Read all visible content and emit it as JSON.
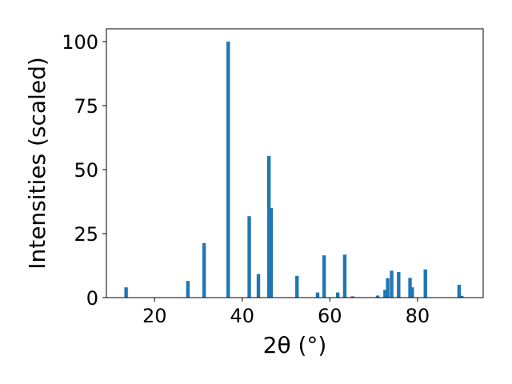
{
  "chart_data": {
    "type": "bar",
    "xlabel": "2θ (°)",
    "ylabel": "Intensities (scaled)",
    "xlim": [
      9,
      95
    ],
    "ylim": [
      0,
      105
    ],
    "xticks": [
      20,
      40,
      60,
      80
    ],
    "yticks": [
      0,
      25,
      50,
      75,
      100
    ],
    "bar_color": "#1f77b4",
    "grid": false,
    "bar_width": 0.8,
    "peaks": [
      {
        "x": 13.5,
        "y": 4.0
      },
      {
        "x": 27.6,
        "y": 6.5
      },
      {
        "x": 31.3,
        "y": 21.3
      },
      {
        "x": 36.8,
        "y": 100.0
      },
      {
        "x": 41.6,
        "y": 31.8
      },
      {
        "x": 43.7,
        "y": 9.2
      },
      {
        "x": 46.1,
        "y": 55.3
      },
      {
        "x": 46.6,
        "y": 35.0
      },
      {
        "x": 52.5,
        "y": 8.5
      },
      {
        "x": 57.2,
        "y": 2.0
      },
      {
        "x": 58.7,
        "y": 16.5
      },
      {
        "x": 61.8,
        "y": 2.0
      },
      {
        "x": 63.4,
        "y": 16.8
      },
      {
        "x": 65.2,
        "y": 0.5
      },
      {
        "x": 70.9,
        "y": 0.8
      },
      {
        "x": 72.6,
        "y": 3.0
      },
      {
        "x": 73.2,
        "y": 7.6
      },
      {
        "x": 74.1,
        "y": 10.5
      },
      {
        "x": 75.7,
        "y": 10.0
      },
      {
        "x": 78.3,
        "y": 7.7
      },
      {
        "x": 78.8,
        "y": 4.0
      },
      {
        "x": 81.8,
        "y": 11.0
      },
      {
        "x": 89.5,
        "y": 5.0
      },
      {
        "x": 90.1,
        "y": 0.7
      }
    ]
  }
}
